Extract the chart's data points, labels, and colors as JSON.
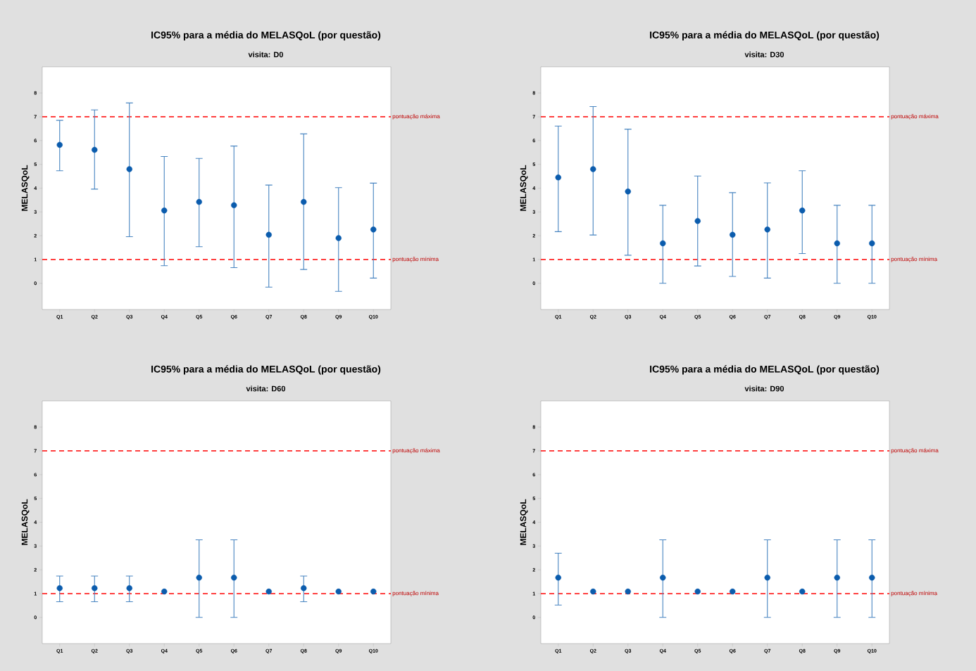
{
  "chart_data": [
    {
      "type": "scatter",
      "title": "IC95% para a média do MELASQoL (por questão)",
      "subtitle": "visita: D0",
      "ylabel": "MELASQoL",
      "categories": [
        "Q1",
        "Q2",
        "Q3",
        "Q4",
        "Q5",
        "Q6",
        "Q7",
        "Q8",
        "Q9",
        "Q10"
      ],
      "marker": "circle",
      "ylim": [
        -1.1,
        9.1
      ],
      "yticks": [
        0,
        1,
        2,
        3,
        4,
        5,
        6,
        7,
        8
      ],
      "series": [
        {
          "color": "#0b5cad",
          "values": [
            5.82,
            5.61,
            4.8,
            3.06,
            3.42,
            3.28,
            2.04,
            3.42,
            1.9,
            2.26
          ],
          "errors": [
            [
              4.73,
              6.85
            ],
            [
              3.96,
              7.29
            ],
            [
              1.96,
              7.58
            ],
            [
              0.74,
              5.33
            ],
            [
              1.54,
              5.25
            ],
            [
              0.66,
              5.77
            ],
            [
              -0.16,
              4.13
            ],
            [
              0.58,
              6.28
            ],
            [
              -0.34,
              4.02
            ],
            [
              0.22,
              4.21
            ]
          ]
        }
      ],
      "ref_lines": [
        {
          "axis": "y",
          "value": 7,
          "label": "pontuação máxima",
          "color": "#ff0000",
          "line_style": "dashed"
        },
        {
          "axis": "y",
          "value": 1,
          "label": "pontuação mínima",
          "color": "#ff0000",
          "line_style": "dashed"
        }
      ]
    },
    {
      "type": "scatter",
      "title": "IC95% para a média do MELASQoL (por questão)",
      "subtitle": "visita: D30",
      "ylabel": "MELASQoL",
      "categories": [
        "Q1",
        "Q2",
        "Q3",
        "Q4",
        "Q5",
        "Q6",
        "Q7",
        "Q8",
        "Q9",
        "Q10"
      ],
      "marker": "circle",
      "ylim": [
        -1.1,
        9.1
      ],
      "yticks": [
        0,
        1,
        2,
        3,
        4,
        5,
        6,
        7,
        8
      ],
      "series": [
        {
          "color": "#0b5cad",
          "values": [
            4.45,
            4.8,
            3.86,
            1.68,
            2.62,
            2.04,
            2.26,
            3.06,
            1.68,
            1.68
          ],
          "errors": [
            [
              2.17,
              6.61
            ],
            [
              2.03,
              7.43
            ],
            [
              1.18,
              6.48
            ],
            [
              0,
              3.28
            ],
            [
              0.73,
              4.51
            ],
            [
              0.29,
              3.81
            ],
            [
              0.22,
              4.22
            ],
            [
              1.25,
              4.73
            ],
            [
              0,
              3.28
            ],
            [
              0,
              3.28
            ]
          ]
        }
      ],
      "ref_lines": [
        {
          "axis": "y",
          "value": 7,
          "label": "pontuação máxima",
          "color": "#ff0000",
          "line_style": "dashed"
        },
        {
          "axis": "y",
          "value": 1,
          "label": "pontuação mínima",
          "color": "#ff0000",
          "line_style": "dashed"
        }
      ]
    },
    {
      "type": "scatter",
      "title": "IC95% para a média do MELASQoL (por questão)",
      "subtitle": "visita: D60",
      "ylabel": "MELASQoL",
      "categories": [
        "Q1",
        "Q2",
        "Q3",
        "Q4",
        "Q5",
        "Q6",
        "Q7",
        "Q8",
        "Q9",
        "Q10"
      ],
      "marker": "circle",
      "ylim": [
        -1.1,
        9.1
      ],
      "yticks": [
        0,
        1,
        2,
        3,
        4,
        5,
        6,
        7,
        8
      ],
      "series": [
        {
          "color": "#0b5cad",
          "values": [
            1.23,
            1.23,
            1.23,
            1.09,
            1.67,
            1.67,
            1.09,
            1.23,
            1.09,
            1.09
          ],
          "errors": [
            [
              0.66,
              1.74
            ],
            [
              0.66,
              1.74
            ],
            [
              0.66,
              1.74
            ],
            null,
            [
              0,
              3.26
            ],
            [
              0,
              3.26
            ],
            null,
            [
              0.66,
              1.74
            ],
            null,
            null
          ]
        }
      ],
      "ref_lines": [
        {
          "axis": "y",
          "value": 7,
          "label": "pontuação máxima",
          "color": "#ff0000",
          "line_style": "dashed"
        },
        {
          "axis": "y",
          "value": 1,
          "label": "pontuação mínima",
          "color": "#ff0000",
          "line_style": "dashed"
        }
      ]
    },
    {
      "type": "scatter",
      "title": "IC95% para a média do MELASQoL (por questão)",
      "subtitle": "visita: D90",
      "ylabel": "MELASQoL",
      "categories": [
        "Q1",
        "Q2",
        "Q3",
        "Q4",
        "Q5",
        "Q6",
        "Q7",
        "Q8",
        "Q9",
        "Q10"
      ],
      "marker": "circle",
      "ylim": [
        -1.1,
        9.1
      ],
      "yticks": [
        0,
        1,
        2,
        3,
        4,
        5,
        6,
        7,
        8
      ],
      "series": [
        {
          "color": "#0b5cad",
          "values": [
            1.67,
            1.09,
            1.09,
            1.67,
            1.09,
            1.09,
            1.67,
            1.09,
            1.67,
            1.67
          ],
          "errors": [
            [
              0.52,
              2.7
            ],
            null,
            null,
            [
              0,
              3.26
            ],
            null,
            null,
            [
              0,
              3.26
            ],
            null,
            [
              0,
              3.26
            ],
            [
              0,
              3.26
            ]
          ]
        }
      ],
      "ref_lines": [
        {
          "axis": "y",
          "value": 7,
          "label": "pontuação máxima",
          "color": "#ff0000",
          "line_style": "dashed"
        },
        {
          "axis": "y",
          "value": 1,
          "label": "pontuação mínima",
          "color": "#ff0000",
          "line_style": "dashed"
        }
      ]
    }
  ]
}
